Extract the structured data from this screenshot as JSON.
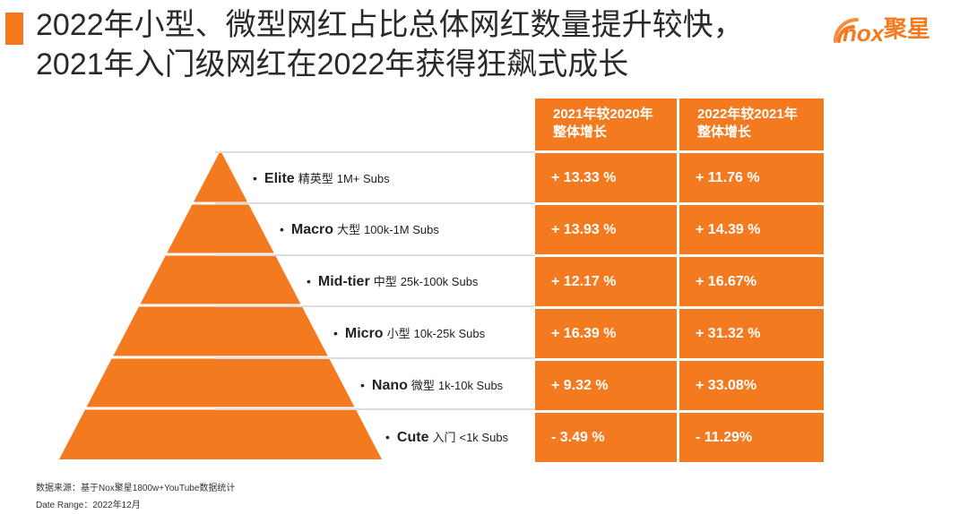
{
  "title": {
    "line1": "2022年小型、微型网红占比总体网红数量提升较快，",
    "line2": "2021年入门级网红在2022年获得狂飙式成长"
  },
  "logo": {
    "brand": "聚星",
    "icon": "nox-wave-logo-icon",
    "color": "#f47a20"
  },
  "colors": {
    "accent": "#f47a20",
    "divider": "#dddddd"
  },
  "table": {
    "headers": [
      "2021年较2020年\n整体增长",
      "2022年较2021年\n整体增长"
    ],
    "header_lines": [
      [
        "2021年较2020年",
        "整体增长"
      ],
      [
        "2022年较2021年",
        "整体增长"
      ]
    ]
  },
  "tiers": [
    {
      "en": "Elite",
      "cn": "精英型",
      "subs": "1M+ Subs",
      "g2021": "+ 13.33 %",
      "g2022": "+ 11.76 %"
    },
    {
      "en": "Macro",
      "cn": "大型",
      "subs": "100k-1M Subs",
      "g2021": "+ 13.93 %",
      "g2022": "+ 14.39 %"
    },
    {
      "en": "Mid-tier",
      "cn": "中型",
      "subs": "25k-100k Subs",
      "g2021": "+ 12.17 %",
      "g2022": "+ 16.67%"
    },
    {
      "en": "Micro",
      "cn": "小型",
      "subs": "10k-25k Subs",
      "g2021": "+ 16.39 %",
      "g2022": "+ 31.32 %"
    },
    {
      "en": "Nano",
      "cn": "微型",
      "subs": "1k-10k Subs",
      "g2021": "+ 9.32 %",
      "g2022": "+ 33.08%"
    },
    {
      "en": "Cute",
      "cn": "入门",
      "subs": "<1k Subs",
      "g2021": "- 3.49 %",
      "g2022": "- 11.29%"
    }
  ],
  "footer": {
    "source": "数据来源：基于Nox聚星1800w+YouTube数据统计",
    "range": "Date Range：2022年12月"
  }
}
